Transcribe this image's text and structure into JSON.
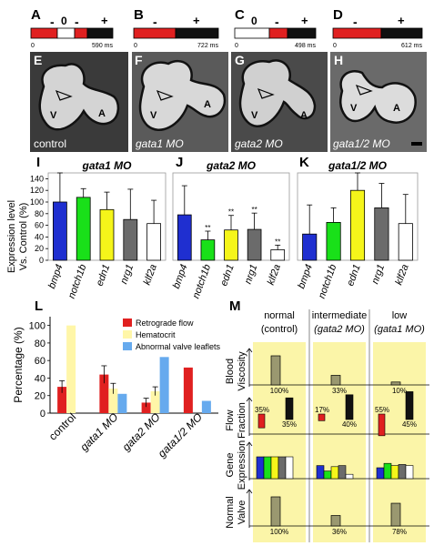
{
  "panels": {
    "A": {
      "letter": "A",
      "ms_label": "590 ms",
      "zero_label": "0",
      "signs": [
        "-",
        "-",
        "+"
      ]
    },
    "B": {
      "letter": "B",
      "ms_label": "722 ms",
      "zero_label": "0",
      "signs": [
        "-",
        "+"
      ]
    },
    "C": {
      "letter": "C",
      "ms_label": "498 ms",
      "zero_label": "0",
      "signs": [
        "0",
        "-",
        "+"
      ]
    },
    "D": {
      "letter": "D",
      "ms_label": "612 ms",
      "zero_label": "0",
      "signs": [
        "-",
        "+"
      ]
    }
  },
  "images": [
    {
      "letter": "E",
      "caption": "control",
      "labels": [
        "V",
        "A"
      ]
    },
    {
      "letter": "F",
      "caption": "gata1 MO",
      "labels": [
        "V",
        "A"
      ]
    },
    {
      "letter": "G",
      "caption": "gata2 MO",
      "labels": [
        "V",
        "A"
      ]
    },
    {
      "letter": "H",
      "caption": "gata1/2 MO",
      "labels": [
        "V",
        "A"
      ]
    }
  ],
  "expression_ylabel_1": "Expression level",
  "expression_ylabel_2": "Vs. Control (%)",
  "colors": {
    "red": "#e02020",
    "black": "#111111",
    "blue": "#1f2fd0",
    "green": "#19e019",
    "yellow": "#f5f51a",
    "gray": "#6b6b6b",
    "white": "#ffffff",
    "olive": "#9a9870",
    "pale": "#fbf5a8",
    "lightblue": "#66aaee",
    "lightyellow": "#fff6a8"
  },
  "chart_data": [
    {
      "type": "bar",
      "id": "I",
      "title": "gata1 MO",
      "categories": [
        "bmp4",
        "notch1b",
        "edn1",
        "nrg1",
        "klf2a"
      ],
      "values": [
        100,
        108,
        87,
        70,
        63
      ],
      "errors": [
        55,
        15,
        30,
        52,
        40
      ],
      "ylim": [
        0,
        150
      ],
      "yticks": [
        0,
        20,
        40,
        60,
        80,
        100,
        120,
        140
      ],
      "significance": [
        "",
        "",
        "",
        "",
        ""
      ]
    },
    {
      "type": "bar",
      "id": "J",
      "title": "gata2 MO",
      "categories": [
        "bmp4",
        "notch1b",
        "edn1",
        "nrg1",
        "klf2a"
      ],
      "values": [
        78,
        35,
        52,
        53,
        18
      ],
      "errors": [
        50,
        15,
        25,
        28,
        8
      ],
      "ylim": [
        0,
        150
      ],
      "significance": [
        "",
        "**",
        "**",
        "**",
        "**"
      ]
    },
    {
      "type": "bar",
      "id": "K",
      "title": "gata1/2 MO",
      "categories": [
        "bmp4",
        "notch1b",
        "edn1",
        "nrg1",
        "klf2a"
      ],
      "values": [
        45,
        65,
        120,
        90,
        63
      ],
      "errors": [
        50,
        25,
        50,
        42,
        50
      ],
      "ylim": [
        0,
        150
      ],
      "significance": [
        "",
        "",
        "",
        "",
        ""
      ]
    },
    {
      "type": "bar",
      "id": "L",
      "ylabel": "Percentage (%)",
      "ylim": [
        0,
        110
      ],
      "yticks": [
        0,
        20,
        40,
        60,
        80,
        100
      ],
      "categories": [
        "control",
        "gata1 MO",
        "gata2 MO",
        "gata1/2 MO"
      ],
      "series": [
        {
          "name": "Retrograde flow",
          "values": [
            30,
            44,
            12,
            52
          ],
          "errors": [
            7,
            10,
            5,
            0
          ]
        },
        {
          "name": "Hematocrit",
          "values": [
            100,
            28,
            25,
            0
          ],
          "errors": [
            0,
            6,
            5,
            0
          ]
        },
        {
          "name": "Abnormal valve leaflets",
          "values": [
            0,
            22,
            64,
            14
          ],
          "errors": [
            0,
            0,
            0,
            0
          ]
        }
      ]
    },
    {
      "type": "table",
      "id": "M",
      "columns": [
        {
          "line1": "normal",
          "line2": "(control)"
        },
        {
          "line1": "intermediate",
          "line2": "(gata2 MO)"
        },
        {
          "line1": "low",
          "line2": "(gata1 MO)"
        }
      ],
      "rows": [
        {
          "label1": "Blood",
          "label2": "Viscosity",
          "values": [
            100,
            33,
            10
          ],
          "labels": [
            "100%",
            "33%",
            "10%"
          ]
        },
        {
          "label1": "Flow",
          "label2": "Fraction",
          "retro": [
            35,
            17,
            55
          ],
          "retro_labels": [
            "35%",
            "17%",
            "55%"
          ],
          "forward": [
            35,
            40,
            45
          ],
          "forward_labels": [
            "35%",
            "40%",
            "45%"
          ]
        },
        {
          "label1": "Gene",
          "label2": "Expression",
          "groups": [
            [
              100,
              100,
              100,
              100,
              100
            ],
            [
              60,
              35,
              55,
              60,
              20
            ],
            [
              50,
              70,
              60,
              65,
              60
            ]
          ]
        },
        {
          "label1": "Normal",
          "label2": "Valve",
          "values": [
            100,
            36,
            78
          ],
          "labels": [
            "100%",
            "36%",
            "78%"
          ]
        }
      ]
    }
  ]
}
